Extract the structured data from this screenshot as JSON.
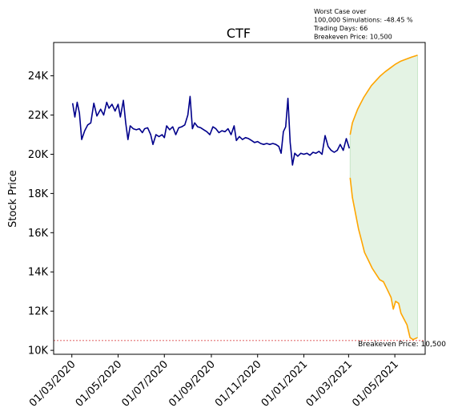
{
  "chart_data": {
    "type": "line",
    "title": "CTF",
    "xlabel": "",
    "ylabel": "Stock Price",
    "annotation_lines": [
      "Worst Case over",
      "100,000 Simulations: -48.45 %",
      "Trading Days: 66",
      "Breakeven Price: 10,500"
    ],
    "breakeven_label": "Breakeven Price: 10,500",
    "breakeven_price": 10500,
    "x_range": [
      "2020-02-06",
      "2021-06-10"
    ],
    "ylim": [
      9800,
      25700
    ],
    "y_ticks": [
      10000,
      12000,
      14000,
      16000,
      18000,
      20000,
      22000,
      24000
    ],
    "y_tick_labels": [
      "10K",
      "12K",
      "14K",
      "16K",
      "18K",
      "20K",
      "22K",
      "24K"
    ],
    "x_ticks": [
      "2020-03-01",
      "2020-05-01",
      "2020-07-01",
      "2020-09-01",
      "2020-11-01",
      "2021-01-01",
      "2021-03-01",
      "2021-05-01"
    ],
    "x_tick_labels": [
      "01/03/2020",
      "01/05/2020",
      "01/07/2020",
      "01/09/2020",
      "01/11/2020",
      "01/01/2021",
      "01/03/2021",
      "01/05/2021"
    ],
    "series": [
      {
        "role": "historical",
        "color": "#00008b",
        "points": [
          [
            "2020-03-02",
            22600
          ],
          [
            "2020-03-05",
            21900
          ],
          [
            "2020-03-08",
            22650
          ],
          [
            "2020-03-11",
            22100
          ],
          [
            "2020-03-14",
            20750
          ],
          [
            "2020-03-18",
            21200
          ],
          [
            "2020-03-22",
            21500
          ],
          [
            "2020-03-26",
            21600
          ],
          [
            "2020-03-30",
            22600
          ],
          [
            "2020-04-03",
            21950
          ],
          [
            "2020-04-08",
            22300
          ],
          [
            "2020-04-12",
            22000
          ],
          [
            "2020-04-16",
            22650
          ],
          [
            "2020-04-19",
            22350
          ],
          [
            "2020-04-23",
            22550
          ],
          [
            "2020-04-27",
            22200
          ],
          [
            "2020-05-01",
            22550
          ],
          [
            "2020-05-04",
            21900
          ],
          [
            "2020-05-08",
            22750
          ],
          [
            "2020-05-11",
            21600
          ],
          [
            "2020-05-14",
            20750
          ],
          [
            "2020-05-17",
            21450
          ],
          [
            "2020-05-21",
            21300
          ],
          [
            "2020-05-25",
            21250
          ],
          [
            "2020-05-29",
            21300
          ],
          [
            "2020-06-02",
            21100
          ],
          [
            "2020-06-05",
            21300
          ],
          [
            "2020-06-09",
            21350
          ],
          [
            "2020-06-13",
            21000
          ],
          [
            "2020-06-16",
            20500
          ],
          [
            "2020-06-20",
            21000
          ],
          [
            "2020-06-24",
            20900
          ],
          [
            "2020-06-28",
            21000
          ],
          [
            "2020-07-01",
            20850
          ],
          [
            "2020-07-04",
            21450
          ],
          [
            "2020-07-08",
            21250
          ],
          [
            "2020-07-12",
            21400
          ],
          [
            "2020-07-16",
            21000
          ],
          [
            "2020-07-20",
            21350
          ],
          [
            "2020-07-24",
            21400
          ],
          [
            "2020-07-28",
            21500
          ],
          [
            "2020-08-01",
            22000
          ],
          [
            "2020-08-04",
            22950
          ],
          [
            "2020-08-07",
            21300
          ],
          [
            "2020-08-10",
            21600
          ],
          [
            "2020-08-14",
            21400
          ],
          [
            "2020-08-18",
            21350
          ],
          [
            "2020-08-22",
            21250
          ],
          [
            "2020-08-26",
            21150
          ],
          [
            "2020-08-30",
            21000
          ],
          [
            "2020-09-03",
            21400
          ],
          [
            "2020-09-07",
            21300
          ],
          [
            "2020-09-11",
            21100
          ],
          [
            "2020-09-15",
            21200
          ],
          [
            "2020-09-19",
            21150
          ],
          [
            "2020-09-23",
            21300
          ],
          [
            "2020-09-27",
            21000
          ],
          [
            "2020-10-01",
            21450
          ],
          [
            "2020-10-04",
            20700
          ],
          [
            "2020-10-08",
            20900
          ],
          [
            "2020-10-12",
            20750
          ],
          [
            "2020-10-16",
            20850
          ],
          [
            "2020-10-20",
            20800
          ],
          [
            "2020-10-24",
            20700
          ],
          [
            "2020-10-28",
            20600
          ],
          [
            "2020-11-01",
            20650
          ],
          [
            "2020-11-05",
            20550
          ],
          [
            "2020-11-09",
            20500
          ],
          [
            "2020-11-13",
            20550
          ],
          [
            "2020-11-17",
            20500
          ],
          [
            "2020-11-21",
            20550
          ],
          [
            "2020-11-25",
            20500
          ],
          [
            "2020-11-29",
            20400
          ],
          [
            "2020-12-02",
            20050
          ],
          [
            "2020-12-05",
            21150
          ],
          [
            "2020-12-08",
            21400
          ],
          [
            "2020-12-11",
            22850
          ],
          [
            "2020-12-14",
            20600
          ],
          [
            "2020-12-17",
            19450
          ],
          [
            "2020-12-20",
            20050
          ],
          [
            "2020-12-24",
            19900
          ],
          [
            "2020-12-28",
            20050
          ],
          [
            "2021-01-01",
            20000
          ],
          [
            "2021-01-05",
            20050
          ],
          [
            "2021-01-09",
            19950
          ],
          [
            "2021-01-13",
            20100
          ],
          [
            "2021-01-17",
            20050
          ],
          [
            "2021-01-21",
            20150
          ],
          [
            "2021-01-25",
            20000
          ],
          [
            "2021-01-29",
            20950
          ],
          [
            "2021-02-02",
            20400
          ],
          [
            "2021-02-06",
            20200
          ],
          [
            "2021-02-10",
            20100
          ],
          [
            "2021-02-14",
            20200
          ],
          [
            "2021-02-18",
            20500
          ],
          [
            "2021-02-22",
            20200
          ],
          [
            "2021-02-26",
            20800
          ],
          [
            "2021-03-02",
            20300
          ]
        ]
      },
      {
        "role": "simulated-best",
        "color": "#ffa500",
        "points": [
          [
            "2021-03-03",
            21000
          ],
          [
            "2021-03-06",
            21600
          ],
          [
            "2021-03-09",
            21900
          ],
          [
            "2021-03-13",
            22300
          ],
          [
            "2021-03-17",
            22600
          ],
          [
            "2021-03-21",
            22900
          ],
          [
            "2021-03-26",
            23200
          ],
          [
            "2021-03-31",
            23500
          ],
          [
            "2021-04-06",
            23750
          ],
          [
            "2021-04-12",
            24000
          ],
          [
            "2021-04-18",
            24200
          ],
          [
            "2021-04-25",
            24400
          ],
          [
            "2021-05-02",
            24600
          ],
          [
            "2021-05-09",
            24750
          ],
          [
            "2021-05-16",
            24850
          ],
          [
            "2021-05-23",
            24950
          ],
          [
            "2021-05-31",
            25050
          ]
        ]
      },
      {
        "role": "simulated-worst",
        "color": "#ffa500",
        "points": [
          [
            "2021-03-03",
            18800
          ],
          [
            "2021-03-06",
            17800
          ],
          [
            "2021-03-10",
            17000
          ],
          [
            "2021-03-14",
            16200
          ],
          [
            "2021-03-18",
            15600
          ],
          [
            "2021-03-22",
            15000
          ],
          [
            "2021-03-27",
            14600
          ],
          [
            "2021-04-01",
            14200
          ],
          [
            "2021-04-06",
            13900
          ],
          [
            "2021-04-11",
            13600
          ],
          [
            "2021-04-16",
            13500
          ],
          [
            "2021-04-21",
            13100
          ],
          [
            "2021-04-26",
            12700
          ],
          [
            "2021-04-29",
            12100
          ],
          [
            "2021-05-02",
            12500
          ],
          [
            "2021-05-06",
            12400
          ],
          [
            "2021-05-09",
            11900
          ],
          [
            "2021-05-13",
            11600
          ],
          [
            "2021-05-17",
            11300
          ],
          [
            "2021-05-21",
            10650
          ],
          [
            "2021-05-25",
            10550
          ],
          [
            "2021-05-31",
            10650
          ]
        ]
      }
    ],
    "fill_color": "#2ca02c",
    "breakeven_color": "#d62728",
    "grid": false
  }
}
